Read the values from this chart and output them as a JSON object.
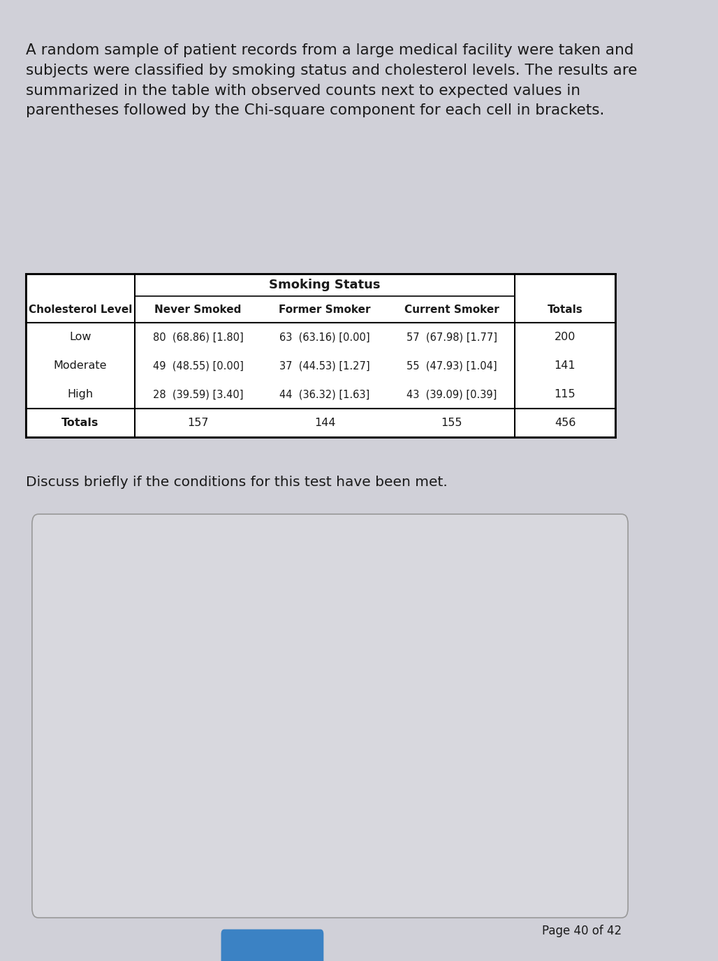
{
  "intro_text": "A random sample of patient records from a large medical facility were taken and\nsubjects were classified by smoking status and cholesterol levels. The results are\nsummarized in the table with observed counts next to expected values in\nparentheses followed by the Chi-square component for each cell in brackets.",
  "discuss_text": "Discuss briefly if the conditions for this test have been met.",
  "page_text": "Page 40 of 42",
  "table_header_group": "Smoking Status",
  "col_headers": [
    "Cholesterol Level",
    "Never Smoked",
    "Former Smoker",
    "Current Smoker",
    "Totals"
  ],
  "row_labels": [
    "Low",
    "Moderate",
    "High",
    "Totals"
  ],
  "cell_data": [
    [
      "80  (68.86) [1.80]",
      "63  (63.16) [0.00]",
      "57  (67.98) [1.77]",
      "200"
    ],
    [
      "49  (48.55) [0.00]",
      "37  (44.53) [1.27]",
      "55  (47.93) [1.04]",
      "141"
    ],
    [
      "28  (39.59) [3.40]",
      "44  (36.32) [1.63]",
      "43  (39.09) [0.39]",
      "115"
    ],
    [
      "157",
      "144",
      "155",
      "456"
    ]
  ],
  "bg_color": "#d0d0d8",
  "table_bg": "#ffffff",
  "answer_box_bg": "#d8d8de",
  "text_color": "#1a1a1a",
  "intro_fontsize": 15.5,
  "discuss_fontsize": 14.5,
  "page_fontsize": 12,
  "table_header_fontsize": 13,
  "table_cell_fontsize": 11
}
